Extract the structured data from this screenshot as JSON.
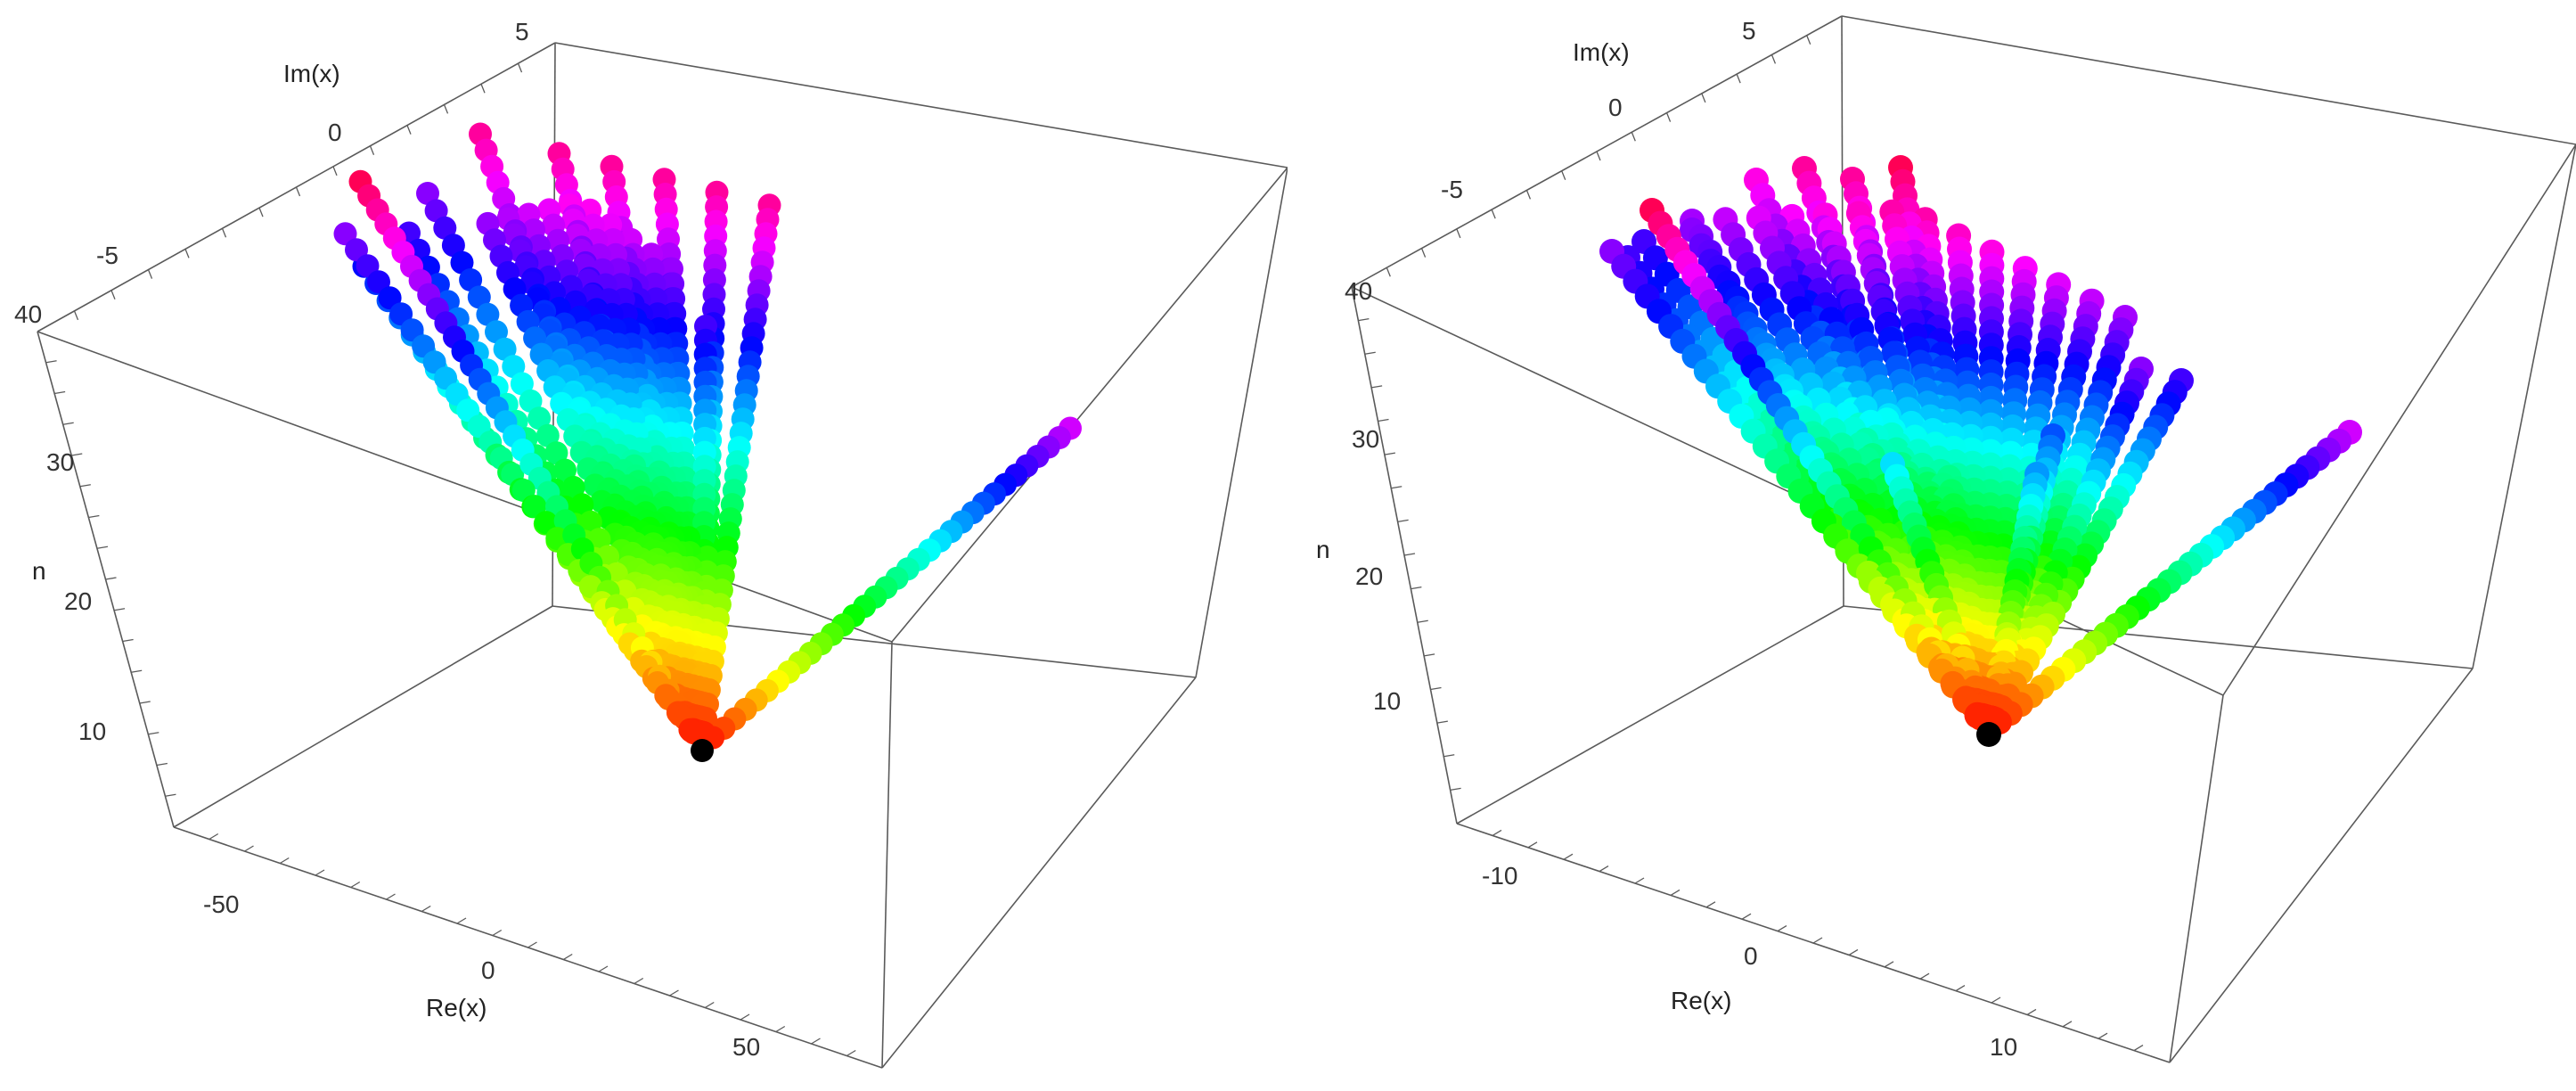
{
  "chart_data": [
    {
      "type": "scatter",
      "subtype": "3d-point-trajectories",
      "axes": {
        "x": {
          "label": "Re(x)",
          "range": [
            -75,
            75
          ],
          "ticks": [
            "-50",
            "0",
            "50"
          ]
        },
        "y": {
          "label": "Im(x)",
          "range": [
            -8,
            5
          ],
          "ticks": [
            "-5",
            "0",
            "5"
          ]
        },
        "z": {
          "label": "n",
          "range": [
            0,
            40
          ],
          "ticks": [
            "10",
            "20",
            "30",
            "40"
          ]
        }
      },
      "color_scale": "hue by n: red (low) → orange → yellow → green → cyan → blue → magenta → red (high)",
      "start_point_color": "#000000",
      "start_point": {
        "re": 0,
        "im": 0,
        "n": 0
      },
      "trajectories": [
        {
          "end": {
            "re": -65,
            "im": 0,
            "n": 40
          }
        },
        {
          "end": {
            "re": -55,
            "im": 2,
            "n": 32
          }
        },
        {
          "end": {
            "re": -45,
            "im": 3,
            "n": 28
          }
        },
        {
          "end": {
            "re": -30,
            "im": 4,
            "n": 30
          }
        },
        {
          "end": {
            "re": -20,
            "im": 5,
            "n": 32
          }
        },
        {
          "end": {
            "re": -10,
            "im": 5,
            "n": 38
          }
        },
        {
          "end": {
            "re": 5,
            "im": 5,
            "n": 38
          }
        },
        {
          "end": {
            "re": 15,
            "im": 5,
            "n": 38
          }
        },
        {
          "end": {
            "re": 25,
            "im": 5,
            "n": 38
          }
        },
        {
          "end": {
            "re": 35,
            "im": 5,
            "n": 38
          }
        },
        {
          "end": {
            "re": 45,
            "im": 5,
            "n": 38
          }
        },
        {
          "end": {
            "re": 70,
            "im": 0,
            "n": 34
          }
        },
        {
          "end": {
            "re": 20,
            "im": 3,
            "n": 30
          }
        }
      ],
      "fan": {
        "re_range": [
          -15,
          20
        ],
        "im": 4,
        "n_max": 36,
        "rows": 10
      }
    },
    {
      "type": "scatter",
      "subtype": "3d-point-trajectories",
      "axes": {
        "x": {
          "label": "Re(x)",
          "range": [
            -16,
            16
          ],
          "ticks": [
            "-10",
            "0",
            "10"
          ]
        },
        "y": {
          "label": "Im(x)",
          "range": [
            -8,
            5
          ],
          "ticks": [
            "-5",
            "0",
            "5"
          ]
        },
        "z": {
          "label": "n",
          "range": [
            0,
            40
          ],
          "ticks": [
            "10",
            "20",
            "30",
            "40"
          ]
        }
      },
      "color_scale": "hue by n: red (low) → orange → yellow → green → cyan → blue → magenta → red (high)",
      "start_point_color": "#000000",
      "start_point": {
        "re": 0,
        "im": 0,
        "n": 0
      },
      "trajectories": [
        {
          "end": {
            "re": -14,
            "im": 0,
            "n": 40
          }
        },
        {
          "end": {
            "re": -13,
            "im": 2,
            "n": 32
          }
        },
        {
          "end": {
            "re": -11,
            "im": 3,
            "n": 30
          }
        },
        {
          "end": {
            "re": -9,
            "im": 4,
            "n": 30
          }
        },
        {
          "end": {
            "re": -7,
            "im": 4,
            "n": 32
          }
        },
        {
          "end": {
            "re": -3,
            "im": 5,
            "n": 36
          }
        },
        {
          "end": {
            "re": -1,
            "im": 5,
            "n": 38
          }
        },
        {
          "end": {
            "re": 1,
            "im": 5,
            "n": 38
          }
        },
        {
          "end": {
            "re": 3,
            "im": 5,
            "n": 40
          }
        },
        {
          "end": {
            "re": 15,
            "im": 0,
            "n": 34
          }
        },
        {
          "end": {
            "re": 9,
            "im": 2,
            "n": 32
          }
        },
        {
          "end": {
            "re": -4,
            "im": 0,
            "n": 22
          }
        },
        {
          "end": {
            "re": 2,
            "im": 0,
            "n": 24
          }
        },
        {
          "end": {
            "re": 4,
            "im": 1,
            "n": 26
          }
        },
        {
          "end": {
            "re": 12,
            "im": 3,
            "n": 30
          }
        }
      ],
      "fan": {
        "re_range": [
          -7,
          11
        ],
        "im": 4,
        "n_max": 38,
        "rows": 14
      }
    }
  ]
}
